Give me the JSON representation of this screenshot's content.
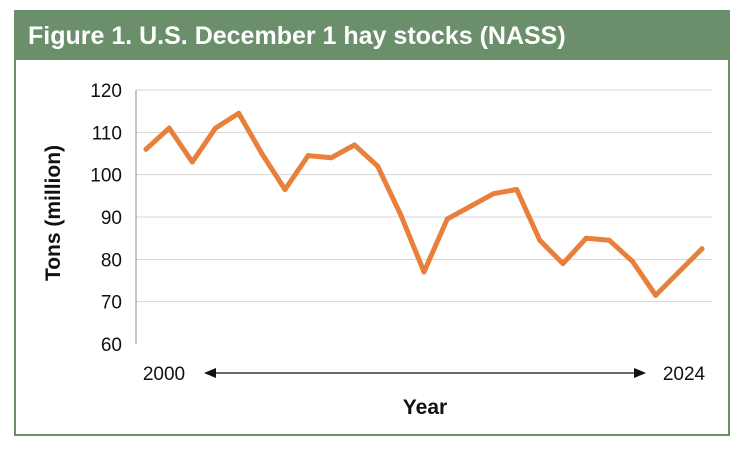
{
  "title": "Figure 1. U.S. December 1 hay stocks (NASS)",
  "colors": {
    "frame": "#6b8f6a",
    "line": "#e8803c",
    "grid": "#d6d6d6"
  },
  "chart_data": {
    "type": "line",
    "title": "Figure 1. U.S. December 1 hay stocks (NASS)",
    "xlabel": "Year",
    "ylabel": "Tons (million)",
    "x_start_label": "2000",
    "x_end_label": "2024",
    "ylim": [
      60,
      120
    ],
    "yticks": [
      60,
      70,
      80,
      90,
      100,
      110,
      120
    ],
    "grid": true,
    "x": [
      2000,
      2001,
      2002,
      2003,
      2004,
      2005,
      2006,
      2007,
      2008,
      2009,
      2010,
      2011,
      2012,
      2013,
      2014,
      2015,
      2016,
      2017,
      2018,
      2019,
      2020,
      2021,
      2022,
      2023,
      2024
    ],
    "series": [
      {
        "values": [
          106,
          111,
          103,
          111,
          114.5,
          105,
          96.5,
          104.5,
          104,
          107,
          102,
          90.5,
          77,
          89.5,
          92.5,
          95.5,
          96.5,
          84.5,
          79,
          85,
          84.5,
          79.5,
          71.5,
          77,
          82.5
        ]
      }
    ]
  }
}
